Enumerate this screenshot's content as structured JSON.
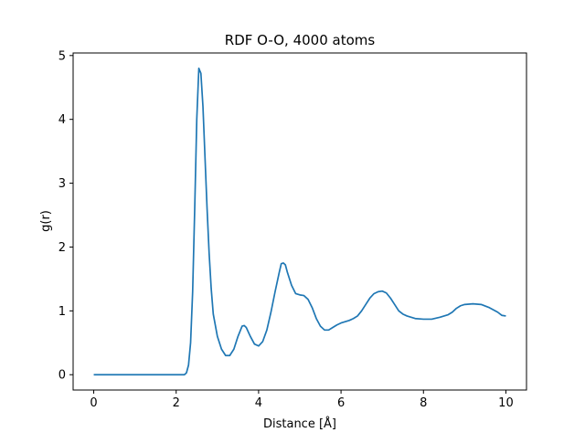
{
  "chart_data": {
    "type": "line",
    "title": "RDF O-O, 4000 atoms",
    "xlabel": "Distance [Å]",
    "ylabel": "g(r)",
    "xlim": [
      -0.5,
      10.5
    ],
    "ylim": [
      -0.24,
      5.04
    ],
    "grid": false,
    "legend": "none",
    "xticks": [
      {
        "value": 0,
        "label": "0"
      },
      {
        "value": 2,
        "label": "2"
      },
      {
        "value": 4,
        "label": "4"
      },
      {
        "value": 6,
        "label": "6"
      },
      {
        "value": 8,
        "label": "8"
      },
      {
        "value": 10,
        "label": "10"
      }
    ],
    "yticks": [
      {
        "value": 0,
        "label": "0"
      },
      {
        "value": 1,
        "label": "1"
      },
      {
        "value": 2,
        "label": "2"
      },
      {
        "value": 3,
        "label": "3"
      },
      {
        "value": 4,
        "label": "4"
      },
      {
        "value": 5,
        "label": "5"
      }
    ],
    "series": [
      {
        "color": "#1f77b4",
        "points": [
          [
            0.0,
            0.0
          ],
          [
            0.5,
            0.0
          ],
          [
            1.0,
            0.0
          ],
          [
            1.5,
            0.0
          ],
          [
            2.0,
            0.0
          ],
          [
            2.2,
            0.0
          ],
          [
            2.25,
            0.03
          ],
          [
            2.3,
            0.15
          ],
          [
            2.35,
            0.5
          ],
          [
            2.4,
            1.3
          ],
          [
            2.45,
            2.6
          ],
          [
            2.5,
            4.0
          ],
          [
            2.55,
            4.8
          ],
          [
            2.6,
            4.72
          ],
          [
            2.65,
            4.2
          ],
          [
            2.7,
            3.4
          ],
          [
            2.75,
            2.6
          ],
          [
            2.8,
            1.9
          ],
          [
            2.85,
            1.35
          ],
          [
            2.9,
            0.95
          ],
          [
            3.0,
            0.6
          ],
          [
            3.1,
            0.4
          ],
          [
            3.2,
            0.3
          ],
          [
            3.3,
            0.3
          ],
          [
            3.4,
            0.4
          ],
          [
            3.5,
            0.6
          ],
          [
            3.6,
            0.76
          ],
          [
            3.65,
            0.77
          ],
          [
            3.7,
            0.74
          ],
          [
            3.8,
            0.6
          ],
          [
            3.9,
            0.48
          ],
          [
            4.0,
            0.45
          ],
          [
            4.1,
            0.52
          ],
          [
            4.2,
            0.7
          ],
          [
            4.3,
            0.98
          ],
          [
            4.4,
            1.3
          ],
          [
            4.5,
            1.6
          ],
          [
            4.55,
            1.74
          ],
          [
            4.6,
            1.75
          ],
          [
            4.65,
            1.72
          ],
          [
            4.7,
            1.6
          ],
          [
            4.8,
            1.4
          ],
          [
            4.9,
            1.27
          ],
          [
            5.0,
            1.25
          ],
          [
            5.1,
            1.24
          ],
          [
            5.2,
            1.18
          ],
          [
            5.3,
            1.05
          ],
          [
            5.4,
            0.88
          ],
          [
            5.5,
            0.76
          ],
          [
            5.6,
            0.7
          ],
          [
            5.7,
            0.7
          ],
          [
            5.8,
            0.74
          ],
          [
            5.9,
            0.78
          ],
          [
            6.0,
            0.81
          ],
          [
            6.1,
            0.83
          ],
          [
            6.2,
            0.85
          ],
          [
            6.3,
            0.88
          ],
          [
            6.4,
            0.92
          ],
          [
            6.5,
            1.0
          ],
          [
            6.6,
            1.1
          ],
          [
            6.7,
            1.2
          ],
          [
            6.8,
            1.27
          ],
          [
            6.9,
            1.3
          ],
          [
            7.0,
            1.31
          ],
          [
            7.1,
            1.28
          ],
          [
            7.2,
            1.2
          ],
          [
            7.3,
            1.1
          ],
          [
            7.4,
            1.0
          ],
          [
            7.5,
            0.95
          ],
          [
            7.6,
            0.92
          ],
          [
            7.7,
            0.9
          ],
          [
            7.8,
            0.88
          ],
          [
            8.0,
            0.87
          ],
          [
            8.2,
            0.87
          ],
          [
            8.4,
            0.9
          ],
          [
            8.6,
            0.94
          ],
          [
            8.7,
            0.98
          ],
          [
            8.8,
            1.04
          ],
          [
            8.9,
            1.08
          ],
          [
            9.0,
            1.1
          ],
          [
            9.2,
            1.11
          ],
          [
            9.4,
            1.1
          ],
          [
            9.6,
            1.05
          ],
          [
            9.8,
            0.98
          ],
          [
            9.9,
            0.93
          ],
          [
            10.0,
            0.92
          ]
        ]
      }
    ]
  }
}
